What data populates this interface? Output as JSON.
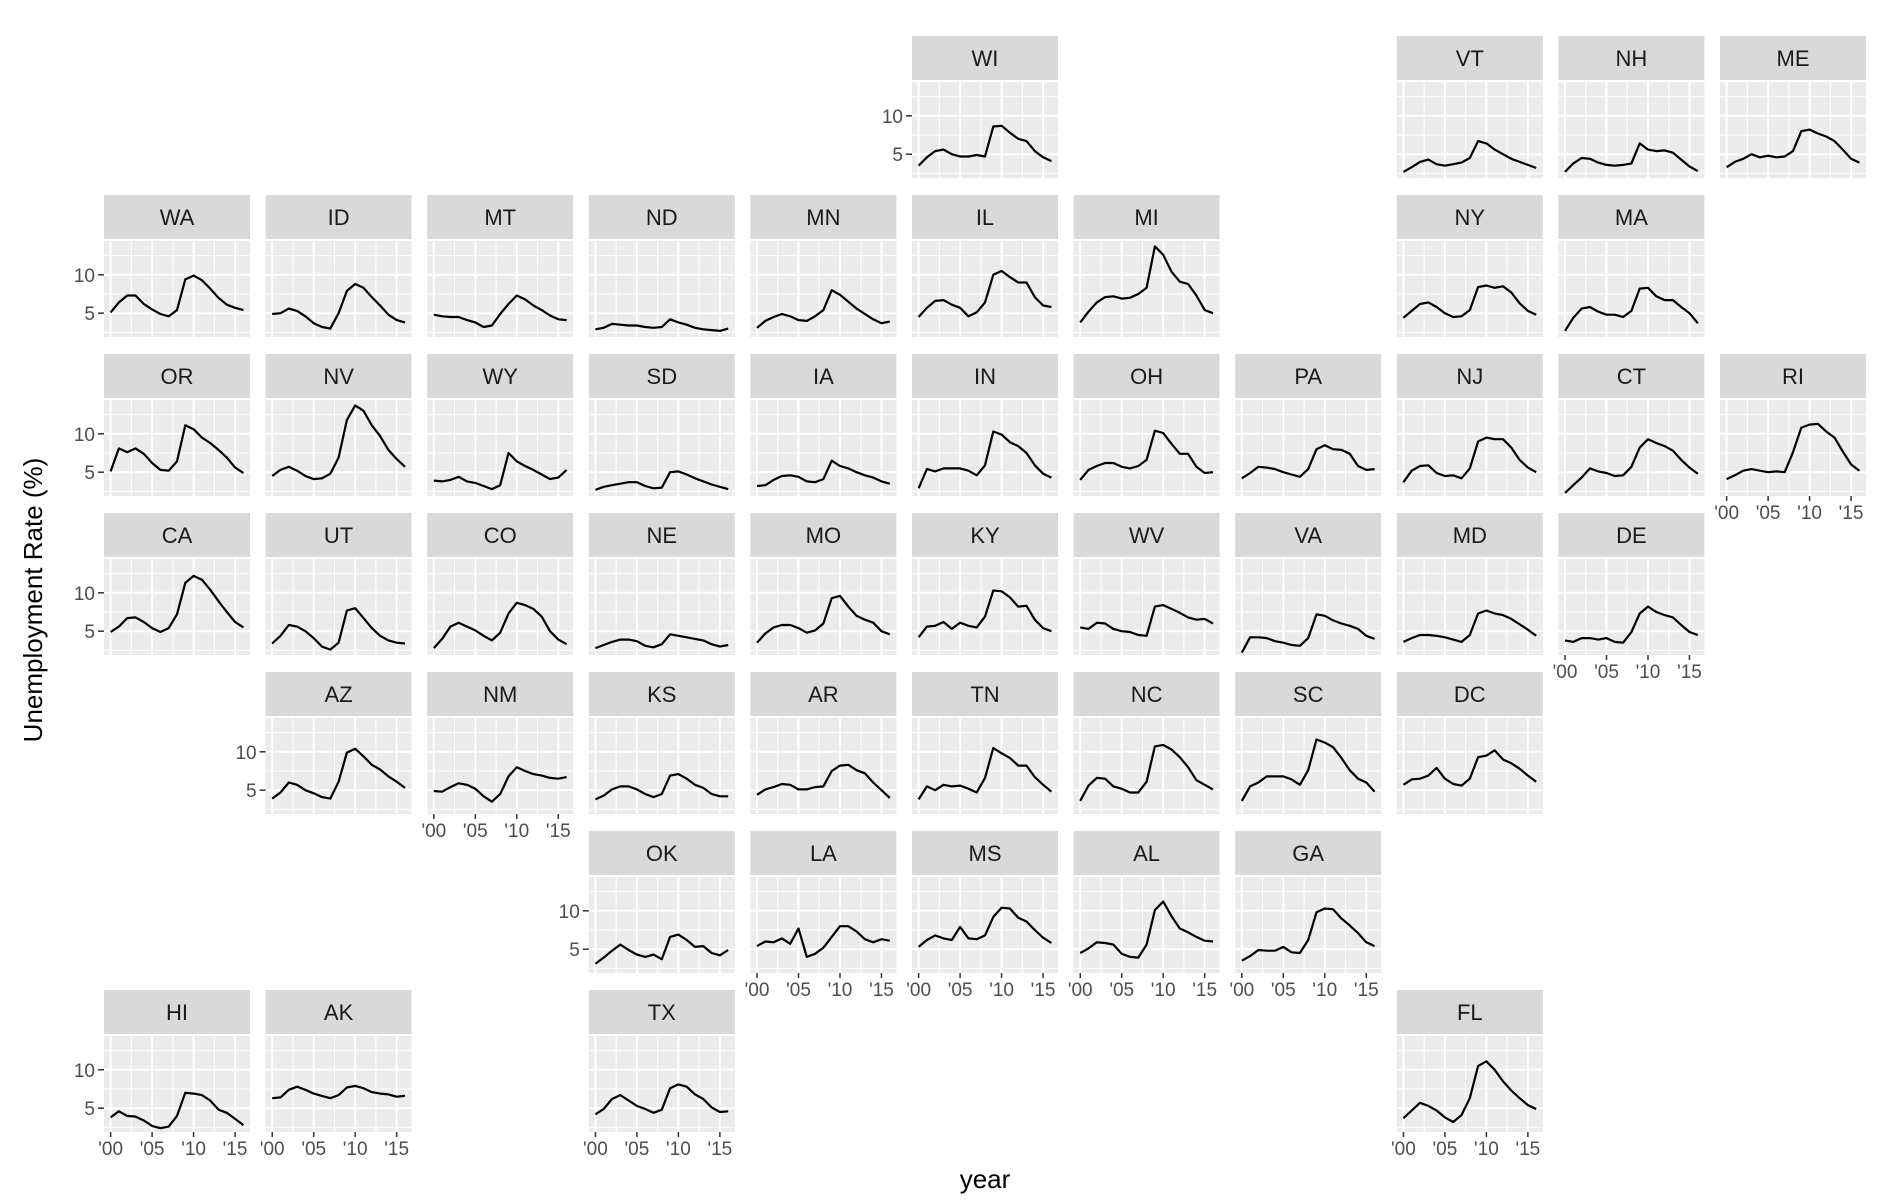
{
  "chart_data": {
    "type": "line",
    "layout": "geofacet grid of small multiples, one panel per US state",
    "xlabel": "year",
    "ylabel": "Unemployment Rate (%)",
    "x": [
      2000,
      2001,
      2002,
      2003,
      2004,
      2005,
      2006,
      2007,
      2008,
      2009,
      2010,
      2011,
      2012,
      2013,
      2014,
      2015,
      2016
    ],
    "x_ticks": [
      2000,
      2005,
      2010,
      2015
    ],
    "x_tick_labels": [
      "'00",
      "'05",
      "'10",
      "'15"
    ],
    "y_ticks": [
      5,
      10
    ],
    "y_tick_labels": [
      "5",
      "10"
    ],
    "xlim": [
      1999.2,
      2016.8
    ],
    "ylim": [
      1.9,
      14.4
    ],
    "grid": "major and minor, white on grey panels",
    "line_color": "#000000",
    "panel_background": "#ebebeb",
    "strip_background": "#d9d9d9",
    "panels": [
      {
        "state": "WI",
        "row": 0,
        "col": 5,
        "values": [
          3.5,
          4.6,
          5.4,
          5.6,
          5.0,
          4.7,
          4.7,
          4.9,
          4.7,
          8.6,
          8.7,
          7.8,
          7.0,
          6.7,
          5.4,
          4.6,
          4.1
        ]
      },
      {
        "state": "VT",
        "row": 0,
        "col": 8,
        "values": [
          2.7,
          3.3,
          4.0,
          4.3,
          3.7,
          3.5,
          3.7,
          3.9,
          4.5,
          6.7,
          6.4,
          5.6,
          5.0,
          4.4,
          4.0,
          3.6,
          3.2
        ]
      },
      {
        "state": "NH",
        "row": 0,
        "col": 9,
        "values": [
          2.7,
          3.8,
          4.5,
          4.4,
          3.9,
          3.6,
          3.5,
          3.6,
          3.8,
          6.4,
          5.6,
          5.4,
          5.5,
          5.2,
          4.3,
          3.4,
          2.8
        ]
      },
      {
        "state": "ME",
        "row": 0,
        "col": 10,
        "values": [
          3.3,
          4.0,
          4.4,
          5.0,
          4.6,
          4.8,
          4.6,
          4.7,
          5.4,
          8.0,
          8.2,
          7.7,
          7.3,
          6.7,
          5.6,
          4.4,
          3.9
        ]
      },
      {
        "state": "WA",
        "row": 1,
        "col": 0,
        "values": [
          5.1,
          6.4,
          7.3,
          7.3,
          6.2,
          5.5,
          4.9,
          4.6,
          5.4,
          9.4,
          9.9,
          9.3,
          8.2,
          7.0,
          6.1,
          5.7,
          5.4
        ]
      },
      {
        "state": "ID",
        "row": 1,
        "col": 1,
        "values": [
          4.9,
          5.0,
          5.6,
          5.3,
          4.6,
          3.7,
          3.2,
          3.0,
          5.0,
          7.9,
          8.8,
          8.3,
          7.1,
          6.0,
          4.8,
          4.1,
          3.8
        ]
      },
      {
        "state": "MT",
        "row": 1,
        "col": 2,
        "values": [
          4.8,
          4.6,
          4.5,
          4.5,
          4.1,
          3.8,
          3.2,
          3.4,
          4.9,
          6.2,
          7.3,
          6.8,
          6.0,
          5.4,
          4.7,
          4.2,
          4.1
        ]
      },
      {
        "state": "ND",
        "row": 1,
        "col": 3,
        "values": [
          2.9,
          3.1,
          3.6,
          3.5,
          3.4,
          3.4,
          3.2,
          3.1,
          3.2,
          4.2,
          3.8,
          3.5,
          3.1,
          2.9,
          2.8,
          2.7,
          3.0
        ]
      },
      {
        "state": "MN",
        "row": 1,
        "col": 4,
        "values": [
          3.1,
          4.0,
          4.5,
          4.9,
          4.6,
          4.1,
          4.0,
          4.6,
          5.4,
          8.0,
          7.4,
          6.5,
          5.6,
          4.9,
          4.2,
          3.7,
          3.9
        ]
      },
      {
        "state": "IL",
        "row": 1,
        "col": 5,
        "values": [
          4.5,
          5.7,
          6.6,
          6.7,
          6.1,
          5.7,
          4.6,
          5.1,
          6.4,
          10.0,
          10.5,
          9.7,
          9.0,
          9.0,
          7.1,
          6.0,
          5.8
        ]
      },
      {
        "state": "MI",
        "row": 1,
        "col": 6,
        "values": [
          3.8,
          5.2,
          6.4,
          7.1,
          7.2,
          6.9,
          7.0,
          7.5,
          8.3,
          13.7,
          12.6,
          10.4,
          9.1,
          8.8,
          7.3,
          5.4,
          5.0
        ]
      },
      {
        "state": "NY",
        "row": 1,
        "col": 8,
        "values": [
          4.4,
          5.3,
          6.2,
          6.4,
          5.8,
          5.0,
          4.5,
          4.6,
          5.4,
          8.4,
          8.6,
          8.3,
          8.5,
          7.7,
          6.3,
          5.3,
          4.8
        ]
      },
      {
        "state": "MA",
        "row": 1,
        "col": 9,
        "values": [
          2.7,
          4.4,
          5.6,
          5.8,
          5.2,
          4.8,
          4.8,
          4.5,
          5.3,
          8.2,
          8.3,
          7.2,
          6.7,
          6.7,
          5.8,
          5.0,
          3.7
        ]
      },
      {
        "state": "OR",
        "row": 2,
        "col": 0,
        "values": [
          5.1,
          8.1,
          7.6,
          8.1,
          7.4,
          6.2,
          5.3,
          5.2,
          6.4,
          11.1,
          10.6,
          9.5,
          8.8,
          7.9,
          6.9,
          5.6,
          4.9
        ]
      },
      {
        "state": "NV",
        "row": 2,
        "col": 1,
        "values": [
          4.5,
          5.3,
          5.7,
          5.2,
          4.5,
          4.1,
          4.2,
          4.8,
          6.9,
          11.8,
          13.7,
          13.0,
          11.1,
          9.7,
          7.9,
          6.7,
          5.7
        ]
      },
      {
        "state": "WY",
        "row": 2,
        "col": 2,
        "values": [
          3.9,
          3.8,
          4.0,
          4.4,
          3.8,
          3.6,
          3.2,
          2.8,
          3.3,
          7.5,
          6.4,
          5.8,
          5.3,
          4.7,
          4.1,
          4.3,
          5.3
        ]
      },
      {
        "state": "SD",
        "row": 2,
        "col": 3,
        "values": [
          2.7,
          3.1,
          3.3,
          3.5,
          3.7,
          3.7,
          3.2,
          2.9,
          3.0,
          5.0,
          5.1,
          4.7,
          4.2,
          3.8,
          3.4,
          3.1,
          2.8
        ]
      },
      {
        "state": "IA",
        "row": 2,
        "col": 4,
        "values": [
          3.2,
          3.3,
          4.0,
          4.5,
          4.6,
          4.4,
          3.8,
          3.7,
          4.1,
          6.5,
          5.8,
          5.5,
          5.0,
          4.6,
          4.3,
          3.8,
          3.5
        ]
      },
      {
        "state": "IN",
        "row": 2,
        "col": 5,
        "values": [
          2.9,
          5.4,
          5.1,
          5.5,
          5.5,
          5.5,
          5.2,
          4.6,
          5.9,
          10.3,
          9.9,
          8.9,
          8.4,
          7.5,
          5.9,
          4.8,
          4.3
        ]
      },
      {
        "state": "OH",
        "row": 2,
        "col": 6,
        "values": [
          4.0,
          5.3,
          5.8,
          6.2,
          6.2,
          5.7,
          5.5,
          5.8,
          6.6,
          10.4,
          10.1,
          8.7,
          7.4,
          7.4,
          5.7,
          4.9,
          5.0
        ]
      },
      {
        "state": "PA",
        "row": 2,
        "col": 7,
        "values": [
          4.2,
          4.9,
          5.7,
          5.6,
          5.4,
          5.0,
          4.7,
          4.4,
          5.4,
          8.0,
          8.5,
          8.0,
          7.9,
          7.4,
          5.8,
          5.3,
          5.4
        ]
      },
      {
        "state": "NJ",
        "row": 2,
        "col": 8,
        "values": [
          3.7,
          5.2,
          5.8,
          5.9,
          4.9,
          4.5,
          4.6,
          4.2,
          5.5,
          9.0,
          9.5,
          9.3,
          9.3,
          8.2,
          6.6,
          5.6,
          5.0
        ]
      },
      {
        "state": "CT",
        "row": 2,
        "col": 9,
        "values": [
          2.3,
          3.3,
          4.3,
          5.5,
          5.1,
          4.9,
          4.5,
          4.6,
          5.7,
          8.2,
          9.3,
          8.8,
          8.4,
          7.8,
          6.6,
          5.6,
          4.8
        ]
      },
      {
        "state": "RI",
        "row": 2,
        "col": 10,
        "values": [
          4.1,
          4.6,
          5.2,
          5.4,
          5.2,
          5.0,
          5.1,
          5.0,
          7.6,
          10.8,
          11.2,
          11.3,
          10.3,
          9.5,
          7.7,
          6.0,
          5.2
        ]
      },
      {
        "state": "CA",
        "row": 3,
        "col": 0,
        "values": [
          4.9,
          5.6,
          6.7,
          6.8,
          6.2,
          5.4,
          4.9,
          5.4,
          7.2,
          11.3,
          12.2,
          11.7,
          10.4,
          8.9,
          7.5,
          6.2,
          5.5
        ]
      },
      {
        "state": "UT",
        "row": 3,
        "col": 1,
        "values": [
          3.4,
          4.4,
          5.8,
          5.6,
          5.0,
          4.1,
          3.0,
          2.6,
          3.5,
          7.7,
          8.0,
          6.7,
          5.4,
          4.4,
          3.8,
          3.5,
          3.4
        ]
      },
      {
        "state": "CO",
        "row": 3,
        "col": 2,
        "values": [
          2.8,
          4.0,
          5.6,
          6.1,
          5.6,
          5.1,
          4.4,
          3.8,
          4.8,
          7.3,
          8.7,
          8.4,
          7.9,
          6.9,
          5.0,
          3.9,
          3.3
        ]
      },
      {
        "state": "NE",
        "row": 3,
        "col": 3,
        "values": [
          2.8,
          3.2,
          3.6,
          3.9,
          3.9,
          3.7,
          3.1,
          2.9,
          3.3,
          4.6,
          4.4,
          4.2,
          4.0,
          3.8,
          3.3,
          3.0,
          3.2
        ]
      },
      {
        "state": "MO",
        "row": 3,
        "col": 4,
        "values": [
          3.5,
          4.7,
          5.5,
          5.8,
          5.8,
          5.4,
          4.8,
          5.1,
          6.0,
          9.3,
          9.6,
          8.2,
          7.0,
          6.5,
          6.1,
          5.0,
          4.6
        ]
      },
      {
        "state": "KY",
        "row": 3,
        "col": 5,
        "values": [
          4.2,
          5.6,
          5.7,
          6.2,
          5.3,
          6.1,
          5.7,
          5.5,
          6.9,
          10.3,
          10.2,
          9.4,
          8.2,
          8.3,
          6.5,
          5.4,
          5.0
        ]
      },
      {
        "state": "WV",
        "row": 3,
        "col": 6,
        "values": [
          5.5,
          5.3,
          6.1,
          6.0,
          5.3,
          5.0,
          4.9,
          4.5,
          4.4,
          8.2,
          8.4,
          7.9,
          7.4,
          6.8,
          6.5,
          6.6,
          6.0
        ]
      },
      {
        "state": "VA",
        "row": 3,
        "col": 7,
        "values": [
          2.2,
          4.2,
          4.2,
          4.1,
          3.7,
          3.5,
          3.2,
          3.1,
          4.1,
          7.2,
          7.0,
          6.4,
          6.0,
          5.7,
          5.3,
          4.4,
          4.0
        ]
      },
      {
        "state": "MD",
        "row": 3,
        "col": 8,
        "values": [
          3.6,
          4.1,
          4.5,
          4.5,
          4.4,
          4.2,
          3.9,
          3.6,
          4.5,
          7.3,
          7.7,
          7.3,
          7.1,
          6.6,
          5.9,
          5.2,
          4.4
        ]
      },
      {
        "state": "DE",
        "row": 3,
        "col": 9,
        "values": [
          3.8,
          3.6,
          4.1,
          4.1,
          3.9,
          4.1,
          3.6,
          3.5,
          4.9,
          7.3,
          8.2,
          7.5,
          7.1,
          6.8,
          5.8,
          4.9,
          4.5
        ]
      },
      {
        "state": "AZ",
        "row": 4,
        "col": 1,
        "values": [
          3.9,
          4.7,
          6.0,
          5.7,
          5.0,
          4.6,
          4.1,
          3.9,
          6.1,
          9.9,
          10.4,
          9.4,
          8.3,
          7.7,
          6.8,
          6.1,
          5.3
        ]
      },
      {
        "state": "NM",
        "row": 4,
        "col": 2,
        "values": [
          4.9,
          4.8,
          5.4,
          5.9,
          5.7,
          5.2,
          4.2,
          3.5,
          4.5,
          6.8,
          8.0,
          7.5,
          7.1,
          6.9,
          6.6,
          6.5,
          6.7
        ]
      },
      {
        "state": "KS",
        "row": 4,
        "col": 3,
        "values": [
          3.8,
          4.3,
          5.1,
          5.5,
          5.5,
          5.1,
          4.5,
          4.1,
          4.5,
          6.9,
          7.1,
          6.5,
          5.7,
          5.3,
          4.5,
          4.2,
          4.2
        ]
      },
      {
        "state": "AR",
        "row": 4,
        "col": 4,
        "values": [
          4.4,
          5.1,
          5.4,
          5.8,
          5.7,
          5.1,
          5.1,
          5.4,
          5.5,
          7.5,
          8.2,
          8.3,
          7.6,
          7.2,
          6.0,
          5.0,
          4.0
        ]
      },
      {
        "state": "TN",
        "row": 4,
        "col": 5,
        "values": [
          3.8,
          5.5,
          5.0,
          5.7,
          5.5,
          5.6,
          5.2,
          4.7,
          6.6,
          10.5,
          9.8,
          9.2,
          8.2,
          8.2,
          6.7,
          5.7,
          4.8
        ]
      },
      {
        "state": "NC",
        "row": 4,
        "col": 6,
        "values": [
          3.6,
          5.6,
          6.6,
          6.5,
          5.5,
          5.2,
          4.7,
          4.7,
          6.1,
          10.7,
          10.9,
          10.3,
          9.3,
          8.0,
          6.3,
          5.7,
          5.1
        ]
      },
      {
        "state": "SC",
        "row": 4,
        "col": 7,
        "values": [
          3.6,
          5.5,
          6.0,
          6.8,
          6.8,
          6.8,
          6.4,
          5.7,
          7.6,
          11.6,
          11.2,
          10.6,
          9.2,
          7.6,
          6.5,
          6.0,
          4.8
        ]
      },
      {
        "state": "DC",
        "row": 4,
        "col": 8,
        "values": [
          5.7,
          6.4,
          6.5,
          6.9,
          7.9,
          6.5,
          5.8,
          5.6,
          6.5,
          9.3,
          9.5,
          10.2,
          9.0,
          8.5,
          7.8,
          6.9,
          6.1
        ]
      },
      {
        "state": "OK",
        "row": 5,
        "col": 3,
        "values": [
          3.1,
          3.9,
          4.8,
          5.6,
          4.9,
          4.3,
          4.0,
          4.3,
          3.7,
          6.6,
          6.9,
          6.2,
          5.3,
          5.4,
          4.5,
          4.2,
          4.9
        ]
      },
      {
        "state": "LA",
        "row": 5,
        "col": 4,
        "values": [
          5.4,
          6.0,
          5.9,
          6.4,
          5.7,
          7.7,
          4.0,
          4.4,
          5.2,
          6.6,
          8.0,
          8.0,
          7.3,
          6.3,
          5.9,
          6.3,
          6.1
        ]
      },
      {
        "state": "MS",
        "row": 5,
        "col": 5,
        "values": [
          5.3,
          6.2,
          6.8,
          6.4,
          6.2,
          7.9,
          6.4,
          6.3,
          6.8,
          9.2,
          10.4,
          10.3,
          9.1,
          8.6,
          7.5,
          6.5,
          5.8
        ]
      },
      {
        "state": "AL",
        "row": 5,
        "col": 6,
        "values": [
          4.5,
          5.1,
          5.9,
          5.8,
          5.6,
          4.4,
          4.0,
          3.9,
          5.6,
          10.1,
          11.2,
          9.3,
          7.7,
          7.2,
          6.6,
          6.1,
          6.0
        ]
      },
      {
        "state": "GA",
        "row": 5,
        "col": 7,
        "values": [
          3.5,
          4.1,
          4.9,
          4.8,
          4.8,
          5.3,
          4.6,
          4.5,
          6.2,
          9.8,
          10.3,
          10.2,
          9.0,
          8.1,
          7.1,
          5.9,
          5.4
        ]
      },
      {
        "state": "HI",
        "row": 6,
        "col": 0,
        "values": [
          3.8,
          4.6,
          4.0,
          3.9,
          3.4,
          2.7,
          2.4,
          2.6,
          4.0,
          7.0,
          6.9,
          6.7,
          6.0,
          4.8,
          4.4,
          3.6,
          2.8
        ]
      },
      {
        "state": "AK",
        "row": 6,
        "col": 1,
        "values": [
          6.3,
          6.4,
          7.4,
          7.8,
          7.4,
          6.9,
          6.6,
          6.3,
          6.7,
          7.7,
          7.9,
          7.6,
          7.1,
          6.9,
          6.8,
          6.5,
          6.6
        ]
      },
      {
        "state": "TX",
        "row": 6,
        "col": 3,
        "values": [
          4.2,
          4.9,
          6.2,
          6.7,
          6.0,
          5.3,
          4.9,
          4.4,
          4.8,
          7.6,
          8.1,
          7.8,
          6.8,
          6.2,
          5.1,
          4.5,
          4.6
        ]
      },
      {
        "state": "FL",
        "row": 6,
        "col": 8,
        "values": [
          3.7,
          4.7,
          5.7,
          5.3,
          4.7,
          3.8,
          3.2,
          4.1,
          6.3,
          10.5,
          11.1,
          10.0,
          8.5,
          7.3,
          6.3,
          5.4,
          4.9
        ]
      }
    ]
  }
}
